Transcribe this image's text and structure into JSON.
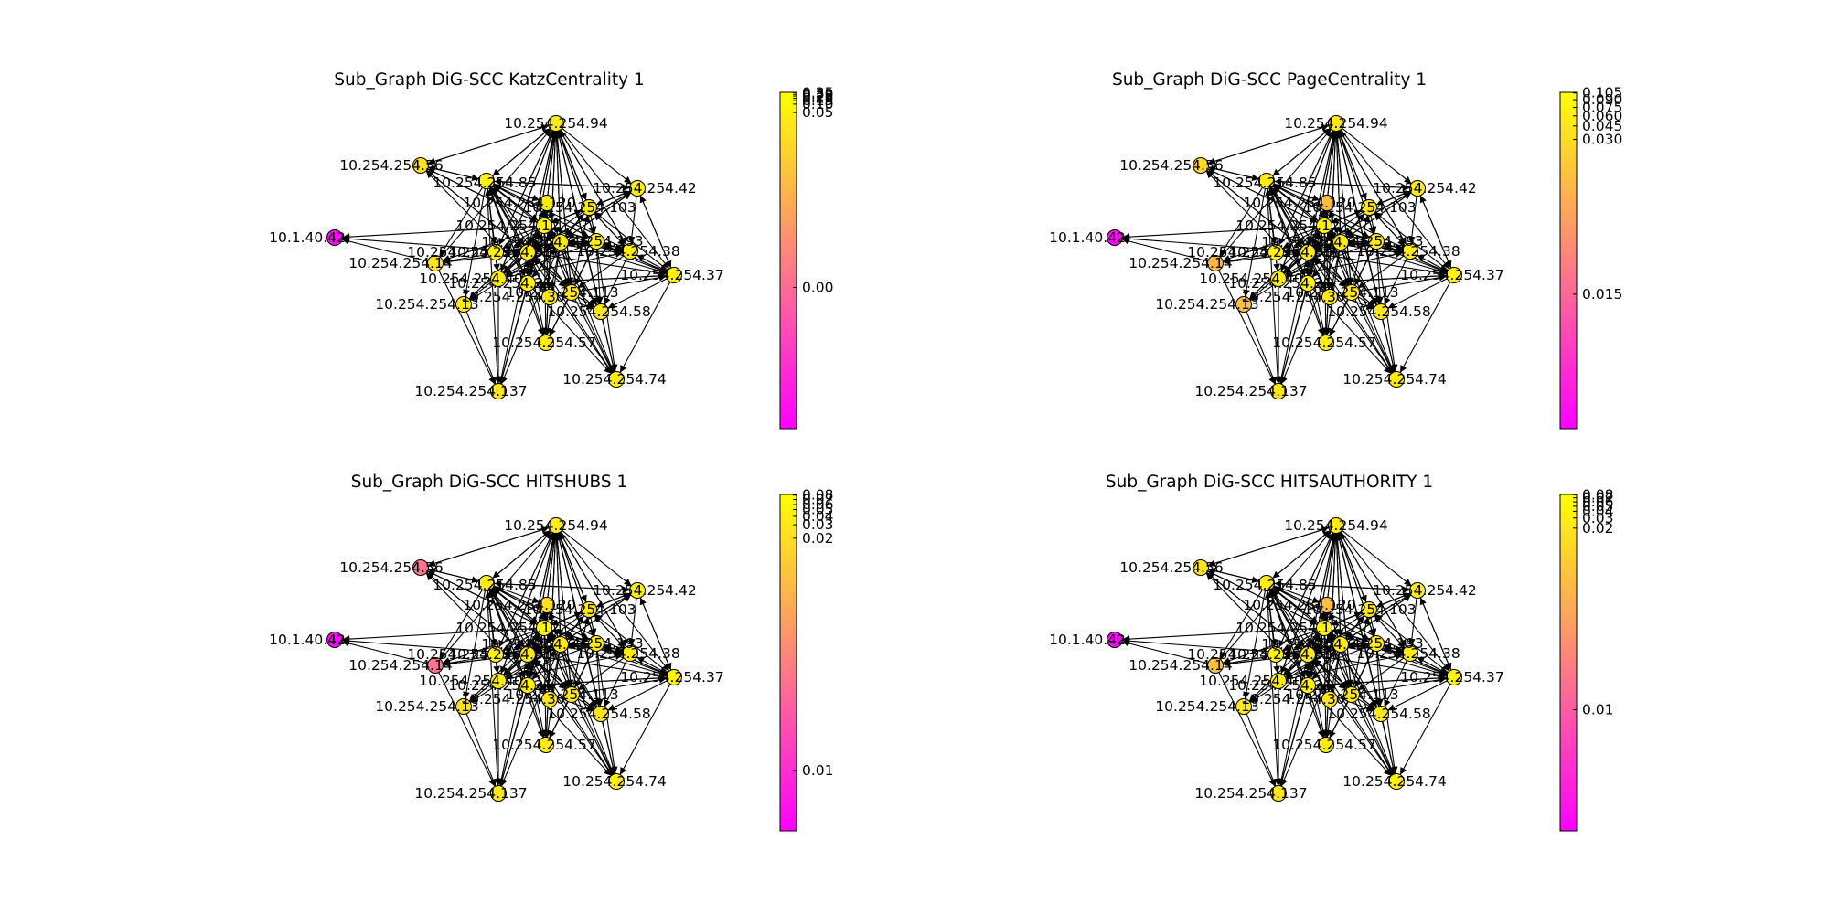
{
  "figure": {
    "colormap": {
      "low": "#ff00ff",
      "high": "#ffff00"
    },
    "node_edge_color": "#000000",
    "edge_color": "#000000"
  },
  "panels": [
    {
      "title": "Sub_Graph DiG-SCC KatzCentrality 1",
      "colorbar_ticks": [
        {
          "label": "0.00",
          "frac": 0.42
        },
        {
          "label": "0.05",
          "frac": 0.94
        },
        {
          "label": "0.10",
          "frac": 0.965
        },
        {
          "label": "0.15",
          "frac": 0.975
        },
        {
          "label": "0.20",
          "frac": 0.982
        },
        {
          "label": "0.25",
          "frac": 0.989
        },
        {
          "label": "0.30",
          "frac": 0.994
        },
        {
          "label": "0.35",
          "frac": 0.999
        }
      ],
      "node_values": [
        0.92,
        0.88,
        0.95,
        0.93,
        0.02,
        0.9,
        0.91,
        0.93,
        0.95,
        0.92,
        0.9,
        0.92,
        0.93,
        0.9,
        0.96,
        0.9,
        0.93,
        0.91,
        0.95,
        0.92,
        0.94,
        0.9,
        0.93,
        0.92
      ]
    },
    {
      "title": "Sub_Graph DiG-SCC PageCentrality 1",
      "colorbar_ticks": [
        {
          "label": "0.015",
          "frac": 0.4
        },
        {
          "label": "0.030",
          "frac": 0.86
        },
        {
          "label": "0.045",
          "frac": 0.9
        },
        {
          "label": "0.060",
          "frac": 0.93
        },
        {
          "label": "0.075",
          "frac": 0.955
        },
        {
          "label": "0.090",
          "frac": 0.978
        },
        {
          "label": "0.105",
          "frac": 0.998
        }
      ],
      "node_values": [
        0.9,
        0.85,
        0.92,
        0.92,
        0.02,
        0.72,
        0.9,
        0.93,
        0.95,
        0.9,
        0.9,
        0.92,
        0.93,
        0.9,
        0.95,
        0.9,
        0.74,
        0.9,
        0.95,
        0.92,
        0.94,
        0.9,
        0.74,
        0.92
      ]
    },
    {
      "title": "Sub_Graph DiG-SCC HITSHUBS 1",
      "colorbar_ticks": [
        {
          "label": "0.01",
          "frac": 0.18
        },
        {
          "label": "0.02",
          "frac": 0.87
        },
        {
          "label": "0.03",
          "frac": 0.91
        },
        {
          "label": "0.04",
          "frac": 0.935
        },
        {
          "label": "0.05",
          "frac": 0.955
        },
        {
          "label": "0.06",
          "frac": 0.97
        },
        {
          "label": "0.07",
          "frac": 0.985
        },
        {
          "label": "0.08",
          "frac": 0.998
        }
      ],
      "node_values": [
        0.93,
        0.45,
        0.92,
        0.93,
        0.02,
        0.45,
        0.9,
        0.93,
        0.95,
        0.92,
        0.9,
        0.92,
        0.93,
        0.9,
        0.96,
        0.9,
        0.88,
        0.9,
        0.95,
        0.92,
        0.94,
        0.9,
        0.88,
        0.92
      ]
    },
    {
      "title": "Sub_Graph DiG-SCC HITSAUTHORITY 1",
      "colorbar_ticks": [
        {
          "label": "0.01",
          "frac": 0.36
        },
        {
          "label": "0.02",
          "frac": 0.9
        },
        {
          "label": "0.03",
          "frac": 0.93
        },
        {
          "label": "0.04",
          "frac": 0.95
        },
        {
          "label": "0.05",
          "frac": 0.965
        },
        {
          "label": "0.06",
          "frac": 0.978
        },
        {
          "label": "0.07",
          "frac": 0.99
        },
        {
          "label": "0.08",
          "frac": 0.999
        }
      ],
      "node_values": [
        0.92,
        0.9,
        0.93,
        0.93,
        0.02,
        0.75,
        0.9,
        0.93,
        0.95,
        0.92,
        0.9,
        0.92,
        0.93,
        0.9,
        0.95,
        0.9,
        0.92,
        0.9,
        0.95,
        0.92,
        0.94,
        0.9,
        0.75,
        0.92
      ]
    }
  ],
  "nodes": [
    {
      "label": "10.254.254.94",
      "x": 0.0,
      "y": 0.0
    },
    {
      "label": "10.254.254.56",
      "x": 0.0,
      "y": 0.0
    },
    {
      "label": "10.254.254.85",
      "x": 0.0,
      "y": 0.0
    },
    {
      "label": "10.254.254.42",
      "x": 0.0,
      "y": 0.0
    },
    {
      "label": "10.1.40.42",
      "x": 0.0,
      "y": 0.0
    },
    {
      "label": "10.254.254.14",
      "x": 0.0,
      "y": 0.0
    },
    {
      "label": "10.254.254.103",
      "x": 0.0,
      "y": 0.0
    },
    {
      "label": "10.254.254.38",
      "x": 0.0,
      "y": 0.0
    },
    {
      "label": "10.254.254.37",
      "x": 0.0,
      "y": 0.0
    },
    {
      "label": "10.254.254.193",
      "x": 0.0,
      "y": 0.0
    },
    {
      "label": "10.254.254.58",
      "x": 0.0,
      "y": 0.0
    },
    {
      "label": "10.254.254.57",
      "x": 0.0,
      "y": 0.0
    },
    {
      "label": "10.254.254.74",
      "x": 0.0,
      "y": 0.0
    },
    {
      "label": "10.254.254.137",
      "x": 0.0,
      "y": 0.0
    },
    {
      "label": "10.254.254.12",
      "x": 0.0,
      "y": 0.0
    },
    {
      "label": "10.254.254.113",
      "x": 0.0,
      "y": 0.0
    },
    {
      "label": "10.254.254.13",
      "x": 0.0,
      "y": 0.0
    },
    {
      "label": "10.254.254.61",
      "x": 0.0,
      "y": 0.0
    },
    {
      "label": "10.254.254.25",
      "x": 0.0,
      "y": 0.0
    },
    {
      "label": "10.254.254.62",
      "x": 0.0,
      "y": 0.0
    },
    {
      "label": "10.254.254.21",
      "x": 0.0,
      "y": 0.0
    },
    {
      "label": "10.254.254.30",
      "x": 0.0,
      "y": 0.0
    },
    {
      "label": "10.254.254.120",
      "x": 0.0,
      "y": 0.0
    },
    {
      "label": "10.254.254.40",
      "x": 0.0,
      "y": 0.0
    }
  ],
  "edges": [
    [
      1,
      0
    ],
    [
      2,
      0
    ],
    [
      5,
      0
    ],
    [
      6,
      0
    ],
    [
      7,
      0
    ],
    [
      9,
      0
    ],
    [
      10,
      0
    ],
    [
      11,
      0
    ],
    [
      14,
      0
    ],
    [
      15,
      0
    ],
    [
      17,
      0
    ],
    [
      18,
      0
    ],
    [
      19,
      0
    ],
    [
      20,
      0
    ],
    [
      23,
      0
    ],
    [
      0,
      1
    ],
    [
      2,
      1
    ],
    [
      14,
      1
    ],
    [
      17,
      1
    ],
    [
      21,
      1
    ],
    [
      0,
      2
    ],
    [
      1,
      2
    ],
    [
      3,
      2
    ],
    [
      7,
      2
    ],
    [
      9,
      2
    ],
    [
      14,
      2
    ],
    [
      15,
      2
    ],
    [
      17,
      2
    ],
    [
      18,
      2
    ],
    [
      20,
      2
    ],
    [
      23,
      2
    ],
    [
      0,
      3
    ],
    [
      2,
      3
    ],
    [
      6,
      3
    ],
    [
      8,
      3
    ],
    [
      14,
      3
    ],
    [
      17,
      3
    ],
    [
      19,
      3
    ],
    [
      5,
      4
    ],
    [
      17,
      4
    ],
    [
      14,
      4
    ],
    [
      2,
      5
    ],
    [
      14,
      5
    ],
    [
      17,
      5
    ],
    [
      19,
      5
    ],
    [
      0,
      6
    ],
    [
      3,
      6
    ],
    [
      7,
      6
    ],
    [
      8,
      6
    ],
    [
      14,
      6
    ],
    [
      15,
      6
    ],
    [
      19,
      6
    ],
    [
      20,
      6
    ],
    [
      0,
      7
    ],
    [
      3,
      7
    ],
    [
      6,
      7
    ],
    [
      8,
      7
    ],
    [
      9,
      7
    ],
    [
      14,
      7
    ],
    [
      17,
      7
    ],
    [
      19,
      7
    ],
    [
      23,
      7
    ],
    [
      0,
      8
    ],
    [
      3,
      8
    ],
    [
      7,
      8
    ],
    [
      9,
      8
    ],
    [
      14,
      8
    ],
    [
      15,
      8
    ],
    [
      17,
      8
    ],
    [
      19,
      8
    ],
    [
      20,
      8
    ],
    [
      0,
      9
    ],
    [
      2,
      9
    ],
    [
      6,
      9
    ],
    [
      7,
      9
    ],
    [
      8,
      9
    ],
    [
      14,
      9
    ],
    [
      17,
      9
    ],
    [
      19,
      9
    ],
    [
      0,
      10
    ],
    [
      7,
      10
    ],
    [
      8,
      10
    ],
    [
      9,
      10
    ],
    [
      14,
      10
    ],
    [
      15,
      10
    ],
    [
      17,
      10
    ],
    [
      19,
      10
    ],
    [
      20,
      10
    ],
    [
      0,
      11
    ],
    [
      2,
      11
    ],
    [
      9,
      11
    ],
    [
      14,
      11
    ],
    [
      15,
      11
    ],
    [
      17,
      11
    ],
    [
      19,
      11
    ],
    [
      20,
      11
    ],
    [
      0,
      12
    ],
    [
      2,
      12
    ],
    [
      8,
      12
    ],
    [
      9,
      12
    ],
    [
      10,
      12
    ],
    [
      14,
      12
    ],
    [
      15,
      12
    ],
    [
      17,
      12
    ],
    [
      19,
      12
    ],
    [
      20,
      12
    ],
    [
      2,
      13
    ],
    [
      5,
      13
    ],
    [
      14,
      13
    ],
    [
      16,
      13
    ],
    [
      17,
      13
    ],
    [
      19,
      13
    ],
    [
      20,
      13
    ],
    [
      23,
      13
    ],
    [
      0,
      14
    ],
    [
      1,
      14
    ],
    [
      2,
      14
    ],
    [
      3,
      14
    ],
    [
      6,
      14
    ],
    [
      7,
      14
    ],
    [
      9,
      14
    ],
    [
      10,
      14
    ],
    [
      15,
      14
    ],
    [
      17,
      14
    ],
    [
      19,
      14
    ],
    [
      20,
      14
    ],
    [
      23,
      14
    ],
    [
      0,
      15
    ],
    [
      2,
      15
    ],
    [
      7,
      15
    ],
    [
      9,
      15
    ],
    [
      14,
      15
    ],
    [
      17,
      15
    ],
    [
      19,
      15
    ],
    [
      2,
      16
    ],
    [
      14,
      16
    ],
    [
      17,
      16
    ],
    [
      19,
      16
    ],
    [
      0,
      17
    ],
    [
      1,
      17
    ],
    [
      2,
      17
    ],
    [
      3,
      17
    ],
    [
      5,
      17
    ],
    [
      6,
      17
    ],
    [
      9,
      17
    ],
    [
      10,
      17
    ],
    [
      14,
      17
    ],
    [
      15,
      17
    ],
    [
      19,
      17
    ],
    [
      20,
      17
    ],
    [
      23,
      17
    ],
    [
      0,
      18
    ],
    [
      2,
      18
    ],
    [
      14,
      18
    ],
    [
      17,
      18
    ],
    [
      19,
      18
    ],
    [
      0,
      19
    ],
    [
      2,
      19
    ],
    [
      3,
      19
    ],
    [
      6,
      19
    ],
    [
      7,
      19
    ],
    [
      9,
      19
    ],
    [
      14,
      19
    ],
    [
      17,
      19
    ],
    [
      20,
      19
    ],
    [
      0,
      20
    ],
    [
      2,
      20
    ],
    [
      8,
      20
    ],
    [
      14,
      20
    ],
    [
      17,
      20
    ],
    [
      19,
      20
    ],
    [
      2,
      21
    ],
    [
      14,
      21
    ],
    [
      17,
      21
    ],
    [
      19,
      21
    ],
    [
      2,
      22
    ],
    [
      14,
      22
    ],
    [
      17,
      22
    ],
    [
      19,
      22
    ],
    [
      20,
      22
    ],
    [
      0,
      23
    ],
    [
      2,
      23
    ],
    [
      9,
      23
    ],
    [
      14,
      23
    ],
    [
      17,
      23
    ],
    [
      19,
      23
    ]
  ]
}
